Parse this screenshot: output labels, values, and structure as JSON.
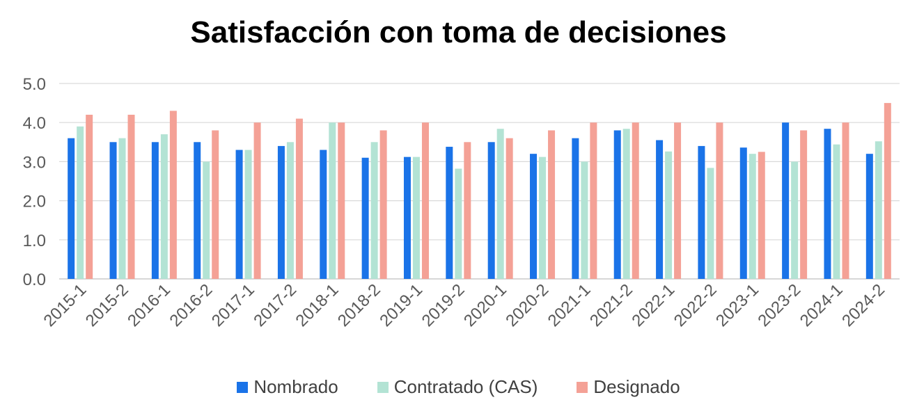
{
  "chart_data": {
    "type": "bar",
    "title": "Satisfacción con toma de decisiones",
    "xlabel": "",
    "ylabel": "",
    "ylim": [
      0,
      5
    ],
    "yticks": [
      "0.0",
      "1.0",
      "2.0",
      "3.0",
      "4.0",
      "5.0"
    ],
    "grid": true,
    "legend_position": "bottom",
    "categories": [
      "2015-1",
      "2015-2",
      "2016-1",
      "2016-2",
      "2017-1",
      "2017-2",
      "2018-1",
      "2018-2",
      "2019-1",
      "2019-2",
      "2020-1",
      "2020-2",
      "2021-1",
      "2021-2",
      "2022-1",
      "2022-2",
      "2023-1",
      "2023-2",
      "2024-1",
      "2024-2"
    ],
    "series": [
      {
        "name": "Nombrado",
        "color": "#1a73e8",
        "values": [
          3.6,
          3.5,
          3.5,
          3.5,
          3.3,
          3.4,
          3.3,
          3.1,
          3.12,
          3.38,
          3.5,
          3.2,
          3.6,
          3.8,
          3.55,
          3.4,
          3.36,
          4.0,
          3.84,
          3.2
        ]
      },
      {
        "name": "Contratado (CAS)",
        "color": "#b3e3d4",
        "values": [
          3.9,
          3.6,
          3.7,
          3.0,
          3.3,
          3.5,
          4.0,
          3.5,
          3.12,
          2.82,
          3.84,
          3.12,
          3.0,
          3.84,
          3.26,
          2.84,
          3.2,
          3.0,
          3.44,
          3.52
        ]
      },
      {
        "name": "Designado",
        "color": "#f4a196",
        "values": [
          4.2,
          4.2,
          4.3,
          3.8,
          4.0,
          4.1,
          4.0,
          3.8,
          4.0,
          3.5,
          3.6,
          3.8,
          4.0,
          4.0,
          4.0,
          4.0,
          3.25,
          3.8,
          4.0,
          4.5
        ]
      }
    ]
  }
}
